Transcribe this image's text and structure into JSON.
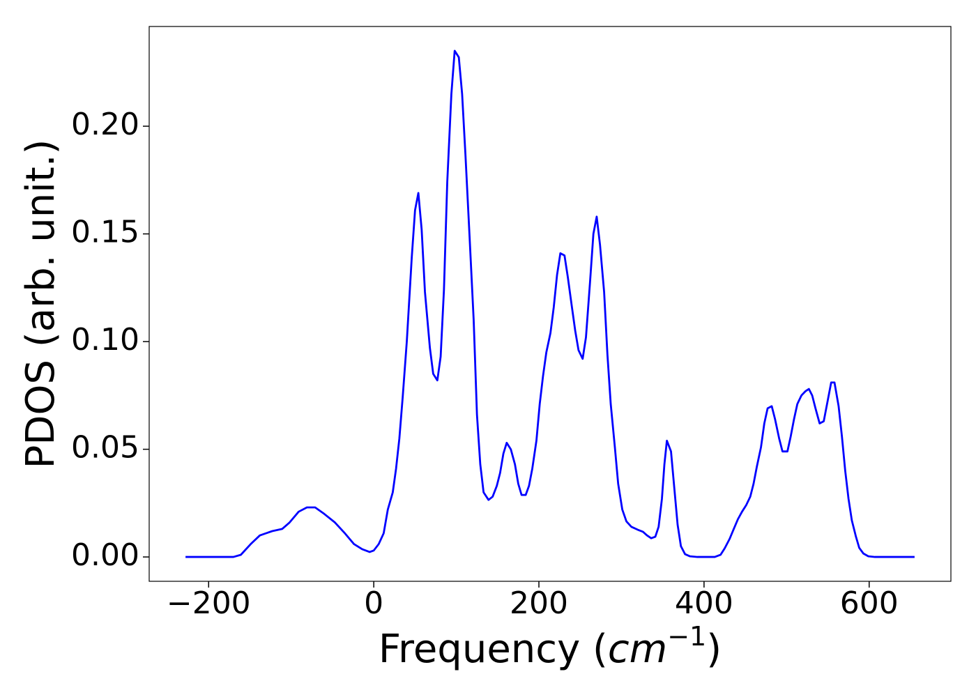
{
  "chart_data": {
    "type": "line",
    "ylabel": "PDOS (arb. unit.)",
    "xlabel": [
      "Frequency (",
      "cm",
      "−1",
      ")"
    ],
    "xlim": [
      -272,
      699
    ],
    "ylim": [
      -0.0113,
      0.2463
    ],
    "xticks": [
      {
        "value": -200,
        "label": "−200"
      },
      0,
      200,
      400,
      600
    ],
    "yticks": [
      {
        "value": 0,
        "label": "0.00"
      },
      {
        "value": 0.05,
        "label": "0.05"
      },
      {
        "value": 0.1,
        "label": "0.10"
      },
      {
        "value": 0.15,
        "label": "0.15"
      },
      {
        "value": 0.2,
        "label": "0.20"
      }
    ],
    "series": [
      {
        "color": "#0000ff",
        "x": [
          -228,
          -170,
          -161,
          -149,
          -138,
          -123,
          -111,
          -102,
          -91,
          -81,
          -71,
          -60,
          -47,
          -35,
          -24,
          -14,
          -5,
          0,
          6,
          12,
          17,
          23,
          27,
          31,
          35,
          40,
          46,
          50,
          54,
          58,
          62,
          68,
          72,
          77,
          81,
          85,
          89,
          94,
          98,
          103,
          107,
          111,
          116,
          121,
          125,
          129,
          133,
          139,
          144,
          149,
          153,
          157,
          161,
          166,
          171,
          175,
          179,
          184,
          188,
          192,
          197,
          201,
          205,
          209,
          214,
          218,
          222,
          226,
          231,
          235,
          240,
          244,
          248,
          253,
          257,
          262,
          266,
          270,
          274,
          279,
          283,
          287,
          292,
          296,
          301,
          306,
          312,
          320,
          326,
          331,
          336,
          341,
          345,
          349,
          352,
          355,
          360,
          364,
          368,
          372,
          377,
          383,
          392,
          413,
          420,
          425,
          431,
          436,
          441,
          446,
          451,
          456,
          460,
          464,
          469,
          473,
          477,
          482,
          486,
          491,
          495,
          501,
          505,
          509,
          513,
          518,
          523,
          527,
          531,
          535,
          540,
          545,
          550,
          554,
          558,
          563,
          567,
          571,
          575,
          579,
          584,
          588,
          593,
          599,
          607,
          655
        ],
        "values": [
          0,
          0,
          0.001,
          0.006,
          0.01,
          0.012,
          0.013,
          0.016,
          0.021,
          0.023,
          0.023,
          0.02,
          0.016,
          0.011,
          0.006,
          0.0036,
          0.0023,
          0.003,
          0.006,
          0.011,
          0.022,
          0.03,
          0.041,
          0.055,
          0.074,
          0.1,
          0.139,
          0.161,
          0.169,
          0.152,
          0.123,
          0.097,
          0.085,
          0.082,
          0.093,
          0.124,
          0.174,
          0.215,
          0.235,
          0.232,
          0.215,
          0.187,
          0.149,
          0.11,
          0.066,
          0.043,
          0.03,
          0.0265,
          0.028,
          0.033,
          0.039,
          0.048,
          0.053,
          0.05,
          0.043,
          0.034,
          0.0288,
          0.0288,
          0.033,
          0.041,
          0.054,
          0.071,
          0.084,
          0.095,
          0.104,
          0.116,
          0.131,
          0.141,
          0.14,
          0.13,
          0.116,
          0.105,
          0.096,
          0.092,
          0.102,
          0.128,
          0.15,
          0.158,
          0.145,
          0.123,
          0.094,
          0.071,
          0.051,
          0.034,
          0.022,
          0.0165,
          0.014,
          0.0126,
          0.0117,
          0.01,
          0.0087,
          0.0094,
          0.014,
          0.027,
          0.043,
          0.054,
          0.049,
          0.032,
          0.015,
          0.005,
          0.0013,
          0.0003,
          0,
          0,
          0.001,
          0.004,
          0.0084,
          0.013,
          0.0175,
          0.021,
          0.024,
          0.028,
          0.034,
          0.042,
          0.051,
          0.062,
          0.069,
          0.07,
          0.064,
          0.055,
          0.049,
          0.049,
          0.056,
          0.064,
          0.071,
          0.075,
          0.077,
          0.078,
          0.075,
          0.069,
          0.062,
          0.063,
          0.073,
          0.081,
          0.081,
          0.07,
          0.056,
          0.04,
          0.027,
          0.017,
          0.0094,
          0.0042,
          0.0016,
          0.0003,
          0,
          0
        ]
      }
    ]
  }
}
